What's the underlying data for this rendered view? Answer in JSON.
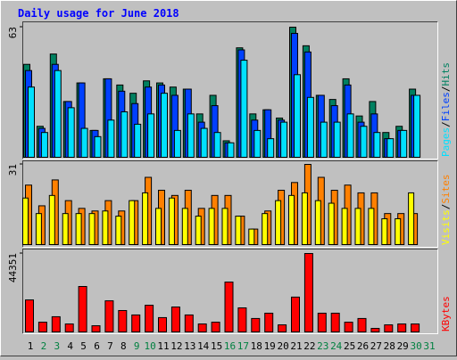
{
  "chart_data": [
    {
      "type": "bar",
      "title": "Daily usage for June 2018",
      "ylim": [
        0,
        63
      ],
      "yticks": [
        63
      ],
      "legend_separator": "/",
      "series": [
        {
          "name": "Hits",
          "color": "#008060",
          "values": [
            45,
            15,
            50,
            27,
            36,
            13,
            38,
            35,
            31,
            37,
            36,
            34,
            33,
            21,
            30,
            8,
            53,
            21,
            23,
            19,
            63,
            54,
            30,
            28,
            38,
            20,
            27,
            12,
            15,
            33,
            null
          ]
        },
        {
          "name": "Files",
          "color": "#0040ff",
          "values": [
            42,
            14,
            45,
            27,
            36,
            13,
            38,
            32,
            26,
            34,
            35,
            30,
            33,
            17,
            25,
            7,
            52,
            18,
            23,
            18,
            60,
            51,
            30,
            25,
            35,
            17,
            21,
            9,
            13,
            30,
            null
          ]
        },
        {
          "name": "Pages",
          "color": "#00e0ff",
          "values": [
            34,
            12,
            42,
            24,
            14,
            10,
            18,
            22,
            16,
            21,
            31,
            13,
            21,
            14,
            12,
            7,
            47,
            13,
            9,
            17,
            40,
            29,
            17,
            17,
            21,
            15,
            12,
            9,
            13,
            30,
            null
          ]
        }
      ]
    },
    {
      "type": "bar",
      "ylim": [
        0,
        31
      ],
      "yticks": [
        31
      ],
      "legend_separator": "/",
      "series": [
        {
          "name": "Sites",
          "color": "#ff8000",
          "values": [
            23,
            15,
            25,
            17,
            14,
            13,
            17,
            13,
            17,
            26,
            21,
            19,
            21,
            14,
            19,
            19,
            11,
            6,
            13,
            21,
            24,
            31,
            26,
            21,
            23,
            20,
            20,
            12,
            12,
            12,
            null
          ]
        },
        {
          "name": "Visits",
          "color": "#ffff00",
          "values": [
            18,
            12,
            19,
            12,
            12,
            12,
            13,
            11,
            17,
            20,
            14,
            18,
            14,
            11,
            14,
            14,
            11,
            6,
            12,
            17,
            19,
            20,
            17,
            16,
            14,
            14,
            14,
            10,
            10,
            20,
            null
          ]
        }
      ]
    },
    {
      "type": "bar",
      "ylim": [
        0,
        44351
      ],
      "yticks": [
        44351
      ],
      "categories": [
        "1",
        "2",
        "3",
        "4",
        "5",
        "6",
        "7",
        "8",
        "9",
        "10",
        "11",
        "12",
        "13",
        "14",
        "15",
        "16",
        "17",
        "18",
        "19",
        "20",
        "21",
        "22",
        "23",
        "24",
        "25",
        "26",
        "27",
        "28",
        "29",
        "30",
        "31"
      ],
      "category_colors": [
        "#000000",
        "#008040",
        "#008040",
        "#000000",
        "#000000",
        "#000000",
        "#000000",
        "#000000",
        "#008040",
        "#008040",
        "#000000",
        "#000000",
        "#000000",
        "#000000",
        "#000000",
        "#008040",
        "#008040",
        "#000000",
        "#000000",
        "#000000",
        "#000000",
        "#000000",
        "#008040",
        "#008040",
        "#000000",
        "#000000",
        "#000000",
        "#000000",
        "#000000",
        "#008040",
        "#008040"
      ],
      "series": [
        {
          "name": "KBytes",
          "color": "#ff0000",
          "values": [
            18100,
            5500,
            8600,
            4500,
            25700,
            3500,
            17600,
            12100,
            9600,
            15100,
            8100,
            14100,
            9600,
            4500,
            5500,
            28200,
            13600,
            7600,
            10600,
            4000,
            19700,
            44351,
            10600,
            10600,
            5500,
            7600,
            2000,
            4000,
            4500,
            4500,
            null
          ]
        }
      ]
    }
  ]
}
